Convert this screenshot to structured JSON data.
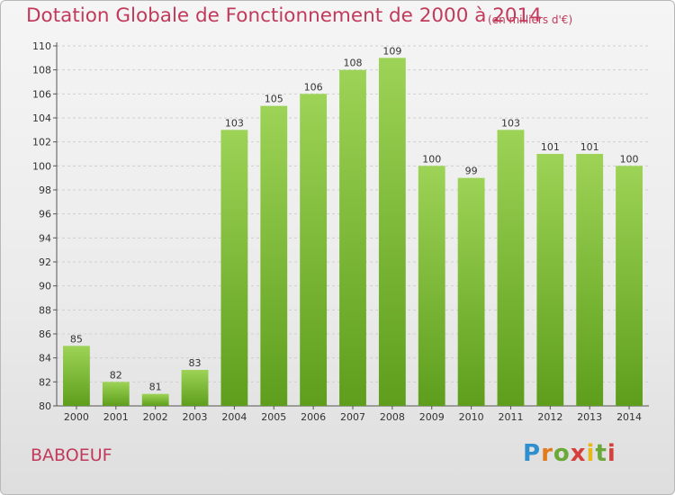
{
  "chart_data": {
    "type": "bar",
    "title": "Dotation Globale de Fonctionnement de 2000 à 2014",
    "unit": "(en milliers d'€)",
    "categories": [
      "2000",
      "2001",
      "2002",
      "2003",
      "2004",
      "2005",
      "2006",
      "2007",
      "2008",
      "2009",
      "2010",
      "2011",
      "2012",
      "2013",
      "2014"
    ],
    "values": [
      85,
      82,
      81,
      83,
      103,
      105,
      106,
      108,
      109,
      100,
      99,
      103,
      101,
      101,
      100
    ],
    "ylim": [
      80,
      110
    ],
    "yticks": [
      80,
      82,
      84,
      86,
      88,
      90,
      92,
      94,
      96,
      98,
      100,
      102,
      104,
      106,
      108,
      110
    ],
    "grid": true,
    "bar_color": "#7cc13a"
  },
  "commune": "BABOEUF",
  "logo": {
    "letters": [
      "P",
      "r",
      "o",
      "x",
      "i",
      "t",
      "i"
    ]
  }
}
